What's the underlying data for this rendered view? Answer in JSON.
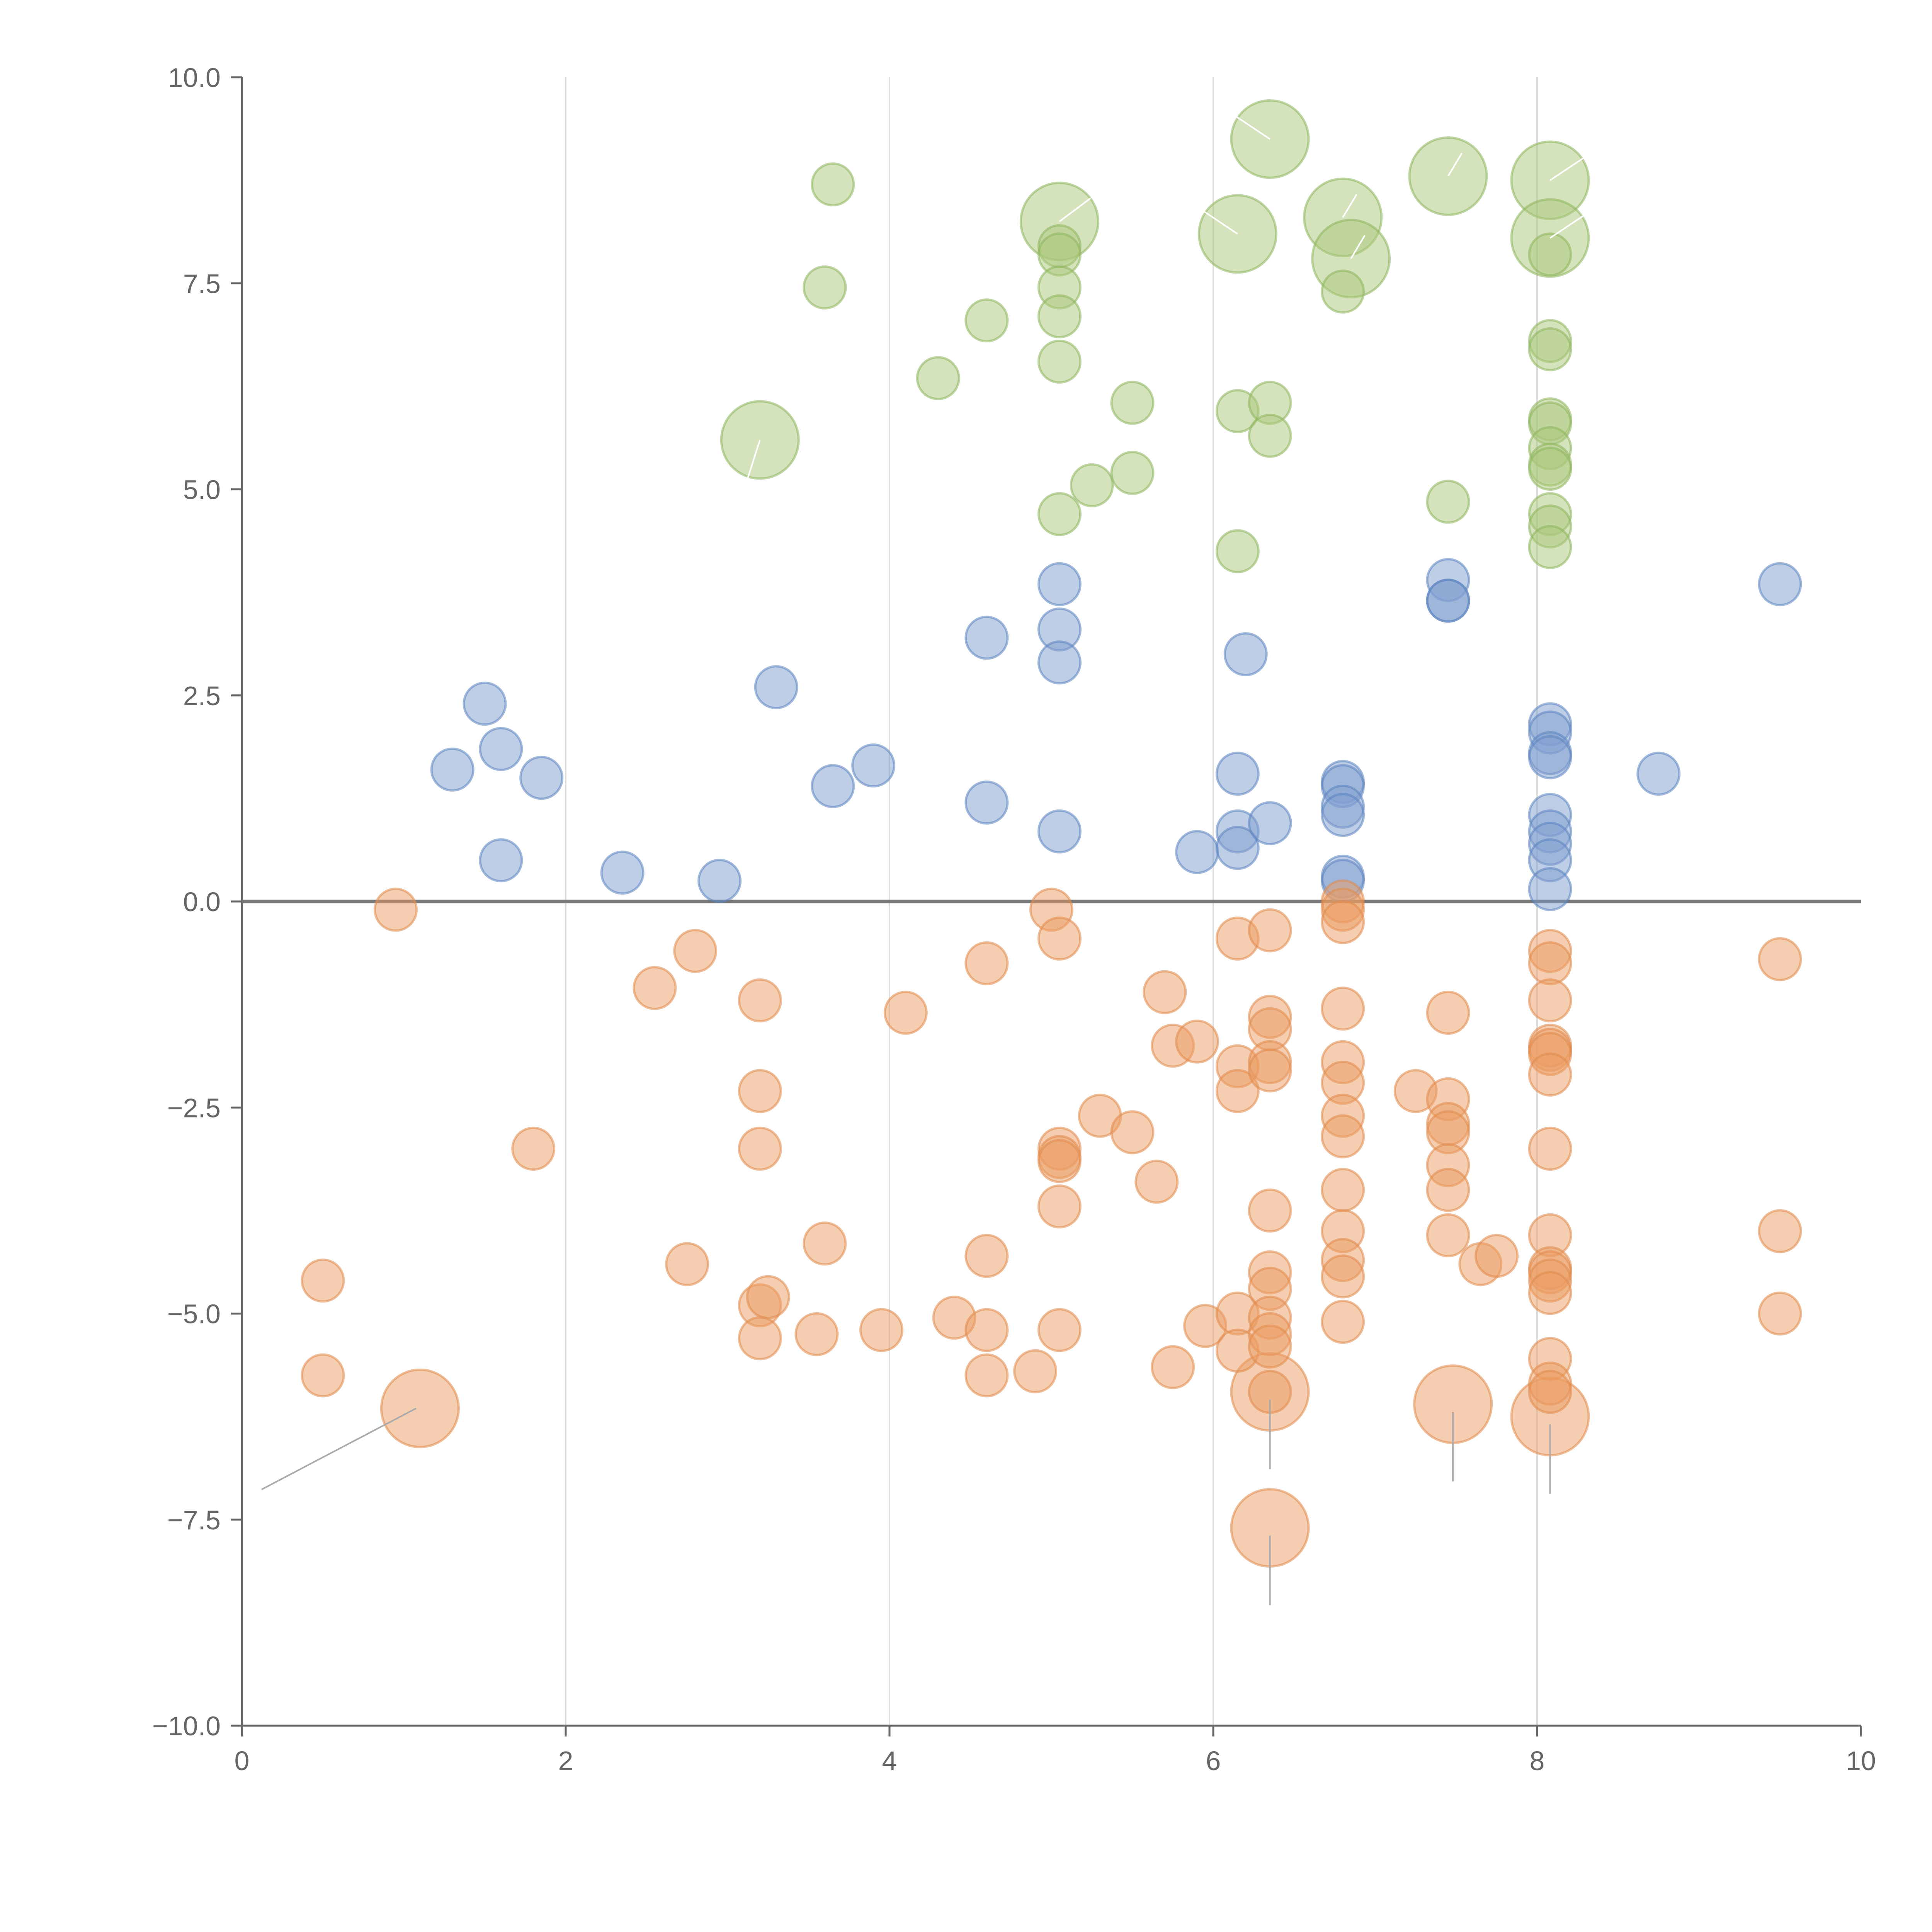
{
  "chart_data": {
    "type": "scatter",
    "title": "",
    "xlabel": "",
    "ylabel": "",
    "xlim": [
      0,
      10
    ],
    "ylim": [
      -10,
      10
    ],
    "x_ticks": [
      "0",
      "2",
      "4",
      "6",
      "8",
      "10"
    ],
    "y_ticks": [
      "−10.0",
      "−7.5",
      "−5.0",
      "−2.5",
      "0.0",
      "2.5",
      "5.0",
      "7.5",
      "10.0"
    ],
    "grid": "vertical",
    "reference_line": 0,
    "colors": {
      "green": "#a9c87a",
      "green_stroke": "#8cb55d",
      "blue": "#7f9ecf",
      "blue_stroke": "#5b83c0",
      "orange": "#eb9c62",
      "orange_stroke": "#e08a4c",
      "leader_light": "#ffffff",
      "leader_dark": "#aaaaaa"
    },
    "series": [
      {
        "name": "green",
        "color": "#a9c87a",
        "points": [
          [
            3.2,
            5.6,
            2
          ],
          [
            5.05,
            8.25,
            2
          ],
          [
            6.35,
            9.25,
            2
          ],
          [
            6.15,
            8.1,
            2
          ],
          [
            6.8,
            8.3,
            2
          ],
          [
            6.85,
            7.8,
            2
          ],
          [
            7.45,
            8.8,
            2
          ],
          [
            8.08,
            8.75,
            2
          ],
          [
            8.08,
            8.05,
            2
          ],
          [
            3.65,
            8.7,
            1
          ],
          [
            3.6,
            7.45,
            1
          ],
          [
            4.3,
            6.35,
            1
          ],
          [
            4.6,
            7.05,
            1
          ],
          [
            5.05,
            7.95,
            1
          ],
          [
            5.05,
            7.85,
            1
          ],
          [
            5.05,
            7.45,
            1
          ],
          [
            5.05,
            7.1,
            1
          ],
          [
            5.05,
            6.55,
            1
          ],
          [
            5.05,
            4.7,
            1
          ],
          [
            5.25,
            5.05,
            1
          ],
          [
            5.5,
            5.2,
            1
          ],
          [
            5.5,
            6.05,
            1
          ],
          [
            6.15,
            5.95,
            1
          ],
          [
            6.35,
            6.05,
            1
          ],
          [
            6.35,
            5.65,
            1
          ],
          [
            6.15,
            4.25,
            1
          ],
          [
            6.8,
            7.4,
            1
          ],
          [
            7.45,
            4.85,
            1
          ],
          [
            8.08,
            7.85,
            1
          ],
          [
            8.08,
            6.8,
            1
          ],
          [
            8.08,
            6.7,
            1
          ],
          [
            8.08,
            5.85,
            1
          ],
          [
            8.08,
            5.8,
            1
          ],
          [
            8.08,
            5.5,
            1
          ],
          [
            8.08,
            5.3,
            1
          ],
          [
            8.08,
            5.25,
            1
          ],
          [
            8.08,
            4.7,
            1
          ],
          [
            8.08,
            4.55,
            1
          ],
          [
            8.08,
            4.3,
            1
          ]
        ]
      },
      {
        "name": "blue",
        "color": "#7f9ecf",
        "points": [
          [
            1.3,
            1.6,
            1
          ],
          [
            1.5,
            2.4,
            1
          ],
          [
            1.6,
            1.85,
            1
          ],
          [
            1.6,
            0.5,
            1
          ],
          [
            1.85,
            1.5,
            1
          ],
          [
            2.35,
            0.35,
            1
          ],
          [
            2.95,
            0.25,
            1
          ],
          [
            3.3,
            2.6,
            1
          ],
          [
            3.65,
            1.4,
            1
          ],
          [
            3.9,
            1.65,
            1
          ],
          [
            4.6,
            3.2,
            1
          ],
          [
            4.6,
            1.2,
            1
          ],
          [
            5.05,
            3.85,
            1
          ],
          [
            5.05,
            3.3,
            1
          ],
          [
            5.05,
            2.9,
            1
          ],
          [
            5.05,
            0.85,
            1
          ],
          [
            5.9,
            0.6,
            1
          ],
          [
            6.2,
            3.0,
            1
          ],
          [
            6.15,
            1.55,
            1
          ],
          [
            6.15,
            0.85,
            1
          ],
          [
            6.15,
            0.65,
            1
          ],
          [
            6.35,
            0.95,
            1
          ],
          [
            6.8,
            1.45,
            1
          ],
          [
            6.8,
            1.4,
            1
          ],
          [
            6.8,
            1.15,
            1
          ],
          [
            6.8,
            1.05,
            1
          ],
          [
            6.8,
            0.3,
            1
          ],
          [
            6.8,
            0.25,
            1
          ],
          [
            7.45,
            3.9,
            1
          ],
          [
            7.45,
            3.65,
            1
          ],
          [
            7.45,
            3.65,
            1
          ],
          [
            8.08,
            2.15,
            1
          ],
          [
            8.08,
            2.05,
            1
          ],
          [
            8.08,
            1.8,
            1
          ],
          [
            8.08,
            1.75,
            1
          ],
          [
            8.08,
            1.05,
            1
          ],
          [
            8.08,
            0.85,
            1
          ],
          [
            8.08,
            0.7,
            1
          ],
          [
            8.08,
            0.5,
            1
          ],
          [
            8.08,
            0.15,
            1
          ],
          [
            8.75,
            1.55,
            1
          ],
          [
            9.5,
            3.85,
            1
          ]
        ]
      },
      {
        "name": "orange",
        "color": "#eb9c62",
        "points": [
          [
            1.1,
            -6.15,
            2
          ],
          [
            6.35,
            -5.95,
            2
          ],
          [
            7.48,
            -6.1,
            2
          ],
          [
            8.08,
            -6.25,
            2
          ],
          [
            6.35,
            -7.6,
            2
          ],
          [
            0.5,
            -4.6,
            1
          ],
          [
            0.5,
            -5.75,
            1
          ],
          [
            0.95,
            -0.1,
            1
          ],
          [
            1.8,
            -3.0,
            1
          ],
          [
            2.55,
            -1.05,
            1
          ],
          [
            2.75,
            -4.4,
            1
          ],
          [
            2.8,
            -0.6,
            1
          ],
          [
            3.2,
            -1.2,
            1
          ],
          [
            3.2,
            -2.3,
            1
          ],
          [
            3.2,
            -3.0,
            1
          ],
          [
            3.2,
            -4.9,
            1
          ],
          [
            3.25,
            -4.8,
            1
          ],
          [
            3.2,
            -5.3,
            1
          ],
          [
            3.55,
            -5.25,
            1
          ],
          [
            3.6,
            -4.15,
            1
          ],
          [
            3.95,
            -5.2,
            1
          ],
          [
            4.1,
            -1.35,
            1
          ],
          [
            4.4,
            -5.05,
            1
          ],
          [
            4.6,
            -0.75,
            1
          ],
          [
            4.6,
            -4.3,
            1
          ],
          [
            4.6,
            -5.2,
            1
          ],
          [
            4.6,
            -5.75,
            1
          ],
          [
            4.9,
            -5.7,
            1
          ],
          [
            5.0,
            -0.1,
            1
          ],
          [
            5.05,
            -0.45,
            1
          ],
          [
            5.05,
            -3.0,
            1
          ],
          [
            5.05,
            -3.1,
            1
          ],
          [
            5.05,
            -3.15,
            1
          ],
          [
            5.05,
            -3.7,
            1
          ],
          [
            5.05,
            -5.2,
            1
          ],
          [
            5.3,
            -2.6,
            1
          ],
          [
            5.5,
            -2.8,
            1
          ],
          [
            5.65,
            -3.4,
            1
          ],
          [
            5.7,
            -1.1,
            1
          ],
          [
            5.75,
            -1.75,
            1
          ],
          [
            5.9,
            -1.7,
            1
          ],
          [
            5.75,
            -5.65,
            1
          ],
          [
            5.95,
            -5.15,
            1
          ],
          [
            6.15,
            -0.45,
            1
          ],
          [
            6.15,
            -2.0,
            1
          ],
          [
            6.15,
            -2.3,
            1
          ],
          [
            6.15,
            -5.0,
            1
          ],
          [
            6.15,
            -5.45,
            1
          ],
          [
            6.35,
            -0.35,
            1
          ],
          [
            6.35,
            -1.4,
            1
          ],
          [
            6.35,
            -1.55,
            1
          ],
          [
            6.35,
            -1.95,
            1
          ],
          [
            6.35,
            -2.05,
            1
          ],
          [
            6.35,
            -3.75,
            1
          ],
          [
            6.35,
            -4.5,
            1
          ],
          [
            6.35,
            -4.7,
            1
          ],
          [
            6.35,
            -5.05,
            1
          ],
          [
            6.35,
            -5.25,
            1
          ],
          [
            6.35,
            -5.4,
            1
          ],
          [
            6.35,
            -5.95,
            1
          ],
          [
            6.8,
            0.0,
            1
          ],
          [
            6.8,
            -0.1,
            1
          ],
          [
            6.8,
            -0.25,
            1
          ],
          [
            6.8,
            -1.3,
            1
          ],
          [
            6.8,
            -1.95,
            1
          ],
          [
            6.8,
            -2.2,
            1
          ],
          [
            6.8,
            -2.6,
            1
          ],
          [
            6.8,
            -2.85,
            1
          ],
          [
            6.8,
            -3.5,
            1
          ],
          [
            6.8,
            -4.0,
            1
          ],
          [
            6.8,
            -4.35,
            1
          ],
          [
            6.8,
            -4.55,
            1
          ],
          [
            6.8,
            -5.1,
            1
          ],
          [
            7.25,
            -2.3,
            1
          ],
          [
            7.45,
            -1.35,
            1
          ],
          [
            7.45,
            -2.4,
            1
          ],
          [
            7.45,
            -2.7,
            1
          ],
          [
            7.45,
            -2.8,
            1
          ],
          [
            7.45,
            -3.2,
            1
          ],
          [
            7.45,
            -3.5,
            1
          ],
          [
            7.45,
            -4.05,
            1
          ],
          [
            7.65,
            -4.4,
            1
          ],
          [
            7.75,
            -4.3,
            1
          ],
          [
            8.08,
            -0.6,
            1
          ],
          [
            8.08,
            -0.75,
            1
          ],
          [
            8.08,
            -1.2,
            1
          ],
          [
            8.08,
            -1.75,
            1
          ],
          [
            8.08,
            -1.8,
            1
          ],
          [
            8.08,
            -1.85,
            1
          ],
          [
            8.08,
            -2.1,
            1
          ],
          [
            8.08,
            -3.0,
            1
          ],
          [
            8.08,
            -4.05,
            1
          ],
          [
            8.08,
            -4.45,
            1
          ],
          [
            8.08,
            -4.5,
            1
          ],
          [
            8.08,
            -4.6,
            1
          ],
          [
            8.08,
            -4.75,
            1
          ],
          [
            8.08,
            -5.55,
            1
          ],
          [
            8.08,
            -5.85,
            1
          ],
          [
            8.08,
            -5.95,
            1
          ],
          [
            9.5,
            -0.7,
            1
          ],
          [
            9.5,
            -4.0,
            1
          ],
          [
            9.5,
            -5.0,
            1
          ]
        ]
      }
    ]
  }
}
